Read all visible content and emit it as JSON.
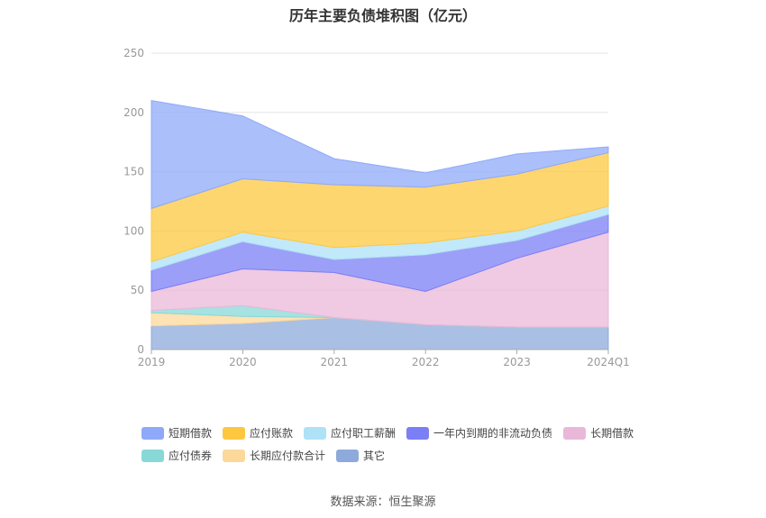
{
  "chart_data": {
    "type": "area",
    "title": "历年主要负债堆积图（亿元）",
    "categories": [
      "2019",
      "2020",
      "2021",
      "2022",
      "2023",
      "2024Q1"
    ],
    "ylim": [
      0,
      250
    ],
    "yticks": [
      0,
      50,
      100,
      150,
      200,
      250
    ],
    "grid": true,
    "legend_position": "bottom",
    "stacked": true,
    "series": [
      {
        "name": "其它",
        "color": "#8eaadb",
        "values": [
          20,
          22,
          27,
          21,
          19,
          19
        ]
      },
      {
        "name": "长期应付款合计",
        "color": "#fcd89a",
        "values": [
          11,
          6,
          0,
          0,
          0,
          0
        ]
      },
      {
        "name": "应付债券",
        "color": "#88d8d8",
        "values": [
          2,
          9,
          0,
          0,
          0,
          0
        ]
      },
      {
        "name": "长期借款",
        "color": "#e9b8d8",
        "values": [
          16,
          31,
          38,
          28,
          58,
          80
        ]
      },
      {
        "name": "一年内到期的非流动负债",
        "color": "#7b7ff5",
        "values": [
          18,
          23,
          11,
          31,
          15,
          15
        ]
      },
      {
        "name": "应付职工薪酬",
        "color": "#aee2f7",
        "values": [
          7,
          8,
          10,
          10,
          8,
          7
        ]
      },
      {
        "name": "应付账款",
        "color": "#fdc840",
        "values": [
          45,
          45,
          53,
          47,
          48,
          45
        ]
      },
      {
        "name": "短期借款",
        "color": "#8fa9f9",
        "values": [
          91,
          53,
          22,
          12,
          17,
          5
        ]
      }
    ]
  },
  "legend_order": [
    "短期借款",
    "应付账款",
    "应付职工薪酬",
    "一年内到期的非流动负债",
    "长期借款",
    "应付债券",
    "长期应付款合计",
    "其它"
  ],
  "source": "数据来源：恒生聚源"
}
